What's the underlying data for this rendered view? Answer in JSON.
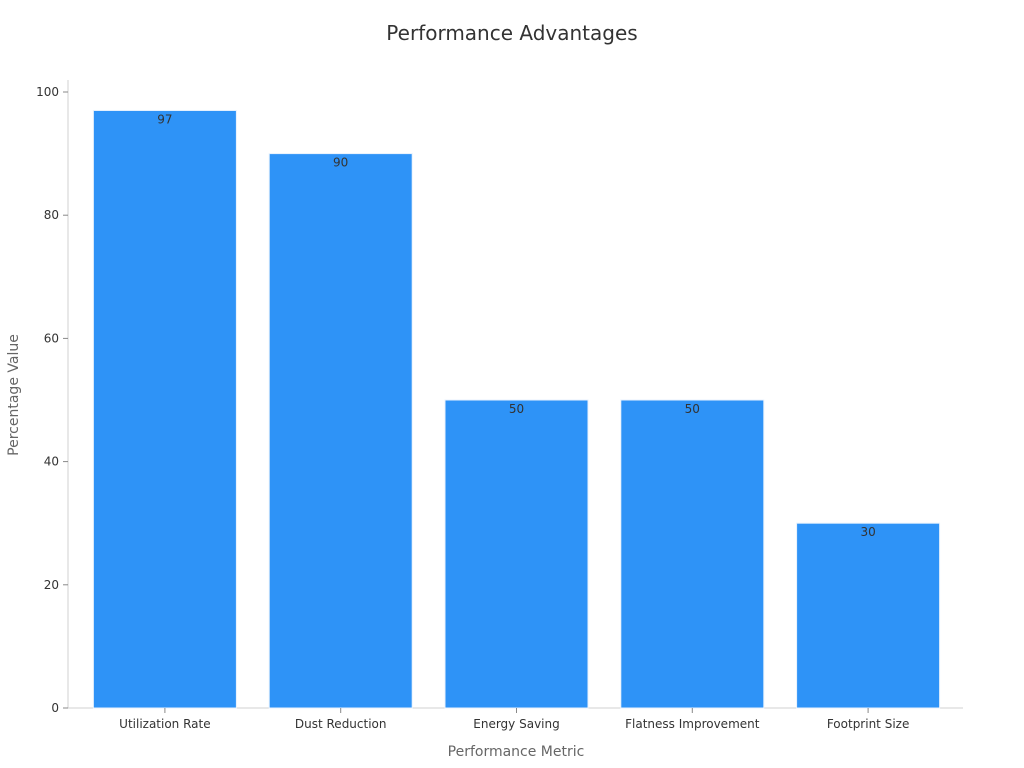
{
  "chart_data": {
    "type": "bar",
    "title": "Performance Advantages",
    "xlabel": "Performance Metric",
    "ylabel": "Percentage Value",
    "categories": [
      "Utilization Rate",
      "Dust Reduction",
      "Energy Saving",
      "Flatness Improvement",
      "Footprint Size"
    ],
    "values": [
      97,
      90,
      50,
      50,
      30
    ],
    "data_labels": [
      "97",
      "90",
      "50",
      "50",
      "30"
    ],
    "yticks": [
      0,
      20,
      40,
      60,
      80,
      100
    ],
    "ytick_labels": [
      "0",
      "20",
      "40",
      "60",
      "80",
      "100"
    ],
    "ylim": [
      0,
      102
    ],
    "bar_color": "#2E93F7",
    "grid": false,
    "legend": "none"
  }
}
